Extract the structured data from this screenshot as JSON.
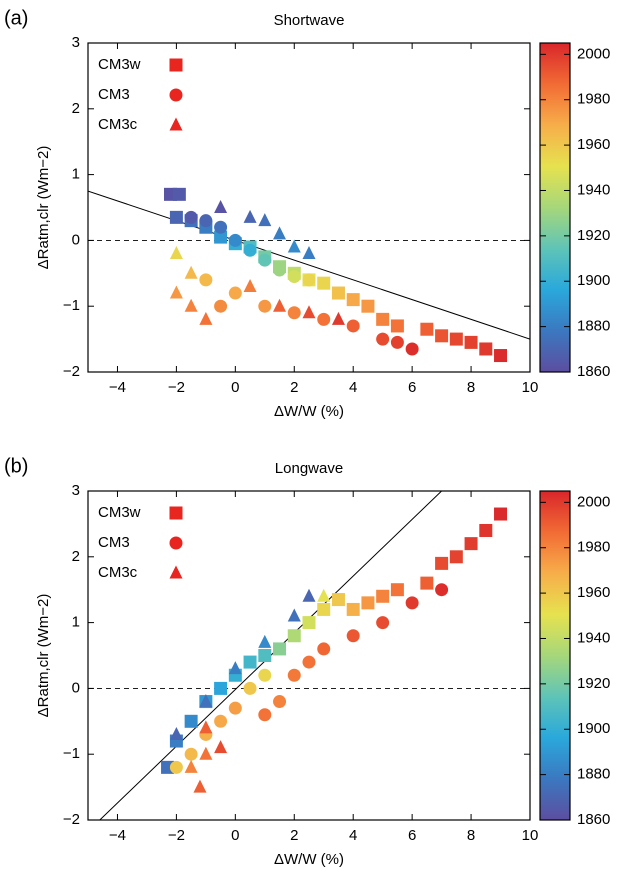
{
  "chart_data": [
    {
      "type": "scatter",
      "label": "(a)",
      "title": "Shortwave",
      "xlabel": "ΔW/W (%)",
      "ylabel": "ΔRatm,clr (Wm−2)",
      "xlim": [
        -5,
        10
      ],
      "ylim": [
        -2,
        3
      ],
      "xticks": [
        {
          "value": -4,
          "label": "−4"
        },
        {
          "value": -2,
          "label": "−2"
        },
        0,
        2,
        4,
        6,
        8,
        10
      ],
      "yticks": [
        {
          "value": -2,
          "label": "−2"
        },
        {
          "value": -1,
          "label": "−1"
        },
        0,
        1,
        2,
        3
      ],
      "clim": [
        1860,
        2005
      ],
      "cticks": [
        1860,
        1880,
        1900,
        1920,
        1940,
        1960,
        1980,
        2000
      ],
      "colormap": [
        "#5c4ea0",
        "#3b78c0",
        "#2aa8dc",
        "#5fc4b7",
        "#a6d77a",
        "#e6e24f",
        "#f7ae4a",
        "#f26b35",
        "#d9262a"
      ],
      "hline": 0,
      "reference_line": {
        "x": [
          -5,
          10
        ],
        "y": [
          0.75,
          -1.5
        ]
      },
      "legend": "upper left",
      "series": [
        {
          "name": "CM3w",
          "marker": "square",
          "color": "#e8251f",
          "x": [
            -2.2,
            -1.9,
            -2,
            -1.5,
            -1,
            -0.5,
            0,
            0.5,
            1,
            1.5,
            2,
            2.5,
            3,
            3.5,
            4,
            4.5,
            5,
            5.5,
            6.5,
            7,
            7.5,
            8,
            8.5,
            9
          ],
          "y": [
            0.7,
            0.7,
            0.35,
            0.3,
            0.2,
            0.05,
            -0.05,
            -0.1,
            -0.25,
            -0.4,
            -0.5,
            -0.6,
            -0.65,
            -0.8,
            -0.9,
            -1.0,
            -1.2,
            -1.3,
            -1.35,
            -1.45,
            -1.5,
            -1.55,
            -1.65,
            -1.75
          ],
          "years": [
            1862,
            1865,
            1870,
            1875,
            1880,
            1890,
            1900,
            1910,
            1920,
            1930,
            1940,
            1950,
            1955,
            1962,
            1970,
            1975,
            1980,
            1985,
            1990,
            1993,
            1996,
            1998,
            2000,
            2004
          ]
        },
        {
          "name": "CM3",
          "marker": "circle",
          "color": "#e8251f",
          "x": [
            -1.5,
            -1,
            -0.5,
            0,
            0.5,
            1,
            1.5,
            2,
            2.5,
            -1,
            0,
            1,
            2,
            3,
            4,
            5,
            5.5,
            6,
            -0.5
          ],
          "y": [
            0.35,
            0.3,
            0.2,
            0,
            -0.15,
            -0.3,
            -0.45,
            -0.55,
            -0.6,
            -0.6,
            -0.8,
            -1.0,
            -1.1,
            -1.2,
            -1.3,
            -1.5,
            -1.55,
            -1.65,
            -1.0
          ],
          "years": [
            1865,
            1870,
            1875,
            1885,
            1900,
            1915,
            1930,
            1945,
            1955,
            1965,
            1970,
            1975,
            1980,
            1985,
            1990,
            1995,
            1998,
            2003,
            1978
          ]
        },
        {
          "name": "CM3c",
          "marker": "triangle",
          "color": "#e8251f",
          "x": [
            -0.5,
            0.5,
            1,
            1.5,
            2,
            2.5,
            -2,
            -1.5,
            -2,
            -1.5,
            -1,
            0.5,
            1.5,
            2.5,
            3.5
          ],
          "y": [
            0.5,
            0.35,
            0.3,
            0.1,
            -0.1,
            -0.2,
            -0.2,
            -0.5,
            -0.8,
            -1.0,
            -1.2,
            -0.7,
            -1.0,
            -1.1,
            -1.2
          ],
          "years": [
            1862,
            1870,
            1875,
            1880,
            1885,
            1880,
            1955,
            1965,
            1975,
            1980,
            1985,
            1982,
            1990,
            1995,
            2000
          ]
        }
      ]
    },
    {
      "type": "scatter",
      "label": "(b)",
      "title": "Longwave",
      "xlabel": "ΔW/W (%)",
      "ylabel": "ΔRatm,clr (Wm−2)",
      "xlim": [
        -5,
        10
      ],
      "ylim": [
        -2,
        3
      ],
      "xticks": [
        {
          "value": -4,
          "label": "−4"
        },
        {
          "value": -2,
          "label": "−2"
        },
        0,
        2,
        4,
        6,
        8,
        10
      ],
      "yticks": [
        {
          "value": -2,
          "label": "−2"
        },
        {
          "value": -1,
          "label": "−1"
        },
        0,
        1,
        2,
        3
      ],
      "clim": [
        1860,
        2005
      ],
      "cticks": [
        1860,
        1880,
        1900,
        1920,
        1940,
        1960,
        1980,
        2000
      ],
      "colormap": [
        "#5c4ea0",
        "#3b78c0",
        "#2aa8dc",
        "#5fc4b7",
        "#a6d77a",
        "#e6e24f",
        "#f7ae4a",
        "#f26b35",
        "#d9262a"
      ],
      "hline": 0,
      "reference_line": {
        "x": [
          -4.6,
          7
        ],
        "y": [
          -2,
          3
        ]
      },
      "legend": "upper left",
      "series": [
        {
          "name": "CM3w",
          "marker": "square",
          "color": "#e8251f",
          "x": [
            -2.3,
            -2,
            -1.5,
            -1,
            -0.5,
            0,
            0.5,
            1,
            1.5,
            2,
            2.5,
            3,
            3.5,
            4,
            4.5,
            5,
            5.5,
            6.5,
            7,
            7.5,
            8,
            8.5,
            9
          ],
          "y": [
            -1.2,
            -0.8,
            -0.5,
            -0.2,
            0,
            0.2,
            0.4,
            0.5,
            0.6,
            0.8,
            1.0,
            1.2,
            1.35,
            1.2,
            1.3,
            1.4,
            1.5,
            1.6,
            1.9,
            2.0,
            2.2,
            2.4,
            2.65
          ],
          "years": [
            1875,
            1880,
            1885,
            1890,
            1895,
            1900,
            1905,
            1910,
            1925,
            1935,
            1945,
            1955,
            1960,
            1968,
            1975,
            1980,
            1985,
            1990,
            1995,
            1997,
            1999,
            2001,
            2004
          ]
        },
        {
          "name": "CM3",
          "marker": "circle",
          "color": "#e8251f",
          "x": [
            -2,
            -1.5,
            -1,
            -0.5,
            0,
            0.5,
            1,
            1.5,
            2,
            2.5,
            3,
            4,
            5,
            6,
            7,
            1
          ],
          "y": [
            -1.2,
            -1,
            -0.7,
            -0.5,
            -0.3,
            0,
            0.2,
            -0.2,
            0.2,
            0.4,
            0.6,
            0.8,
            1.0,
            1.3,
            1.5,
            -0.4
          ],
          "years": [
            1960,
            1965,
            1968,
            1970,
            1973,
            1960,
            1955,
            1980,
            1983,
            1985,
            1988,
            1992,
            1995,
            2000,
            2003,
            1985
          ]
        },
        {
          "name": "CM3c",
          "marker": "triangle",
          "color": "#e8251f",
          "x": [
            -2,
            -1,
            0,
            1,
            2,
            2.5,
            3,
            -1.5,
            -1,
            -1.2,
            -0.5,
            -1
          ],
          "y": [
            -0.7,
            -0.2,
            0.3,
            0.7,
            1.1,
            1.4,
            1.4,
            -1.2,
            -1.0,
            -1.5,
            -0.9,
            -0.6
          ],
          "years": [
            1870,
            1875,
            1880,
            1885,
            1875,
            1870,
            1950,
            1980,
            1985,
            1990,
            1995,
            1990
          ]
        }
      ]
    }
  ]
}
